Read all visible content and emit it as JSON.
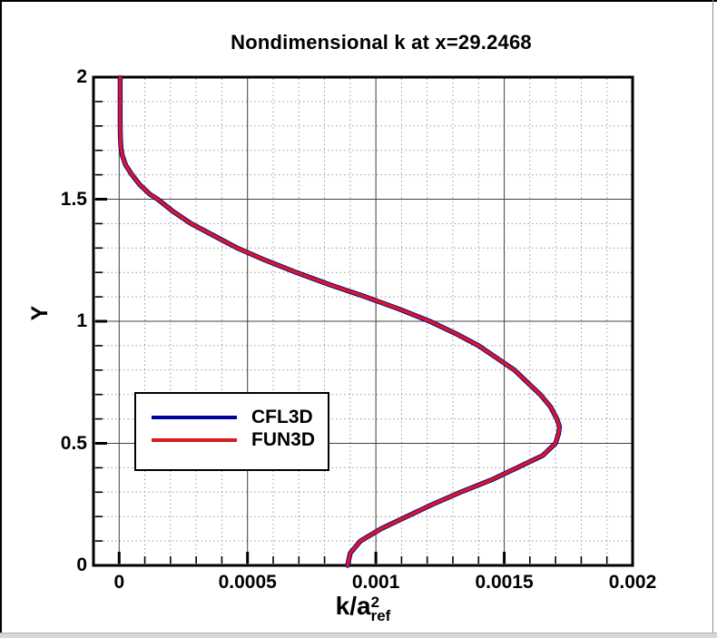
{
  "window": {
    "background": "#ffffff",
    "frame_color": "#000000",
    "bottom_bar_color": "#d7d7d7"
  },
  "chart_data": {
    "type": "line",
    "title": "Nondimensional k at x=29.2468",
    "xlabel": {
      "base": "k/a",
      "sup": "2",
      "sub": "ref"
    },
    "ylabel": "Y",
    "xlim": [
      -0.0001,
      0.002
    ],
    "ylim": [
      0,
      2
    ],
    "x_major_ticks": [
      0,
      0.0005,
      0.001,
      0.0015,
      0.002
    ],
    "x_tick_labels": [
      "0",
      "0.0005",
      "0.001",
      "0.0015",
      "0.002"
    ],
    "y_major_ticks": [
      0,
      0.5,
      1,
      1.5,
      2
    ],
    "y_tick_labels": [
      "0",
      "0.5",
      "1",
      "1.5",
      "2"
    ],
    "x_minor_step": 0.0001,
    "y_minor_step": 0.1,
    "grid": {
      "major_style": "solid",
      "minor_style": "dotted",
      "major_color": "#404040",
      "minor_color": "#999999"
    },
    "axis_color": "#000000",
    "legend": {
      "position": "inside-left-middle",
      "border_color": "#000000",
      "background": "#ffffff"
    },
    "series": [
      {
        "name": "CFL3D",
        "color": "#00009e",
        "points": [
          [
            4e-06,
            2.0
          ],
          [
            4e-06,
            1.9
          ],
          [
            4e-06,
            1.8
          ],
          [
            5e-06,
            1.75
          ],
          [
            7e-06,
            1.71
          ],
          [
            1.2e-05,
            1.68
          ],
          [
            2.5e-05,
            1.64
          ],
          [
            5e-05,
            1.6
          ],
          [
            8e-05,
            1.56
          ],
          [
            0.00012,
            1.52
          ],
          [
            0.00015,
            1.5
          ],
          [
            0.00021,
            1.45
          ],
          [
            0.00028,
            1.4
          ],
          [
            0.00037,
            1.35
          ],
          [
            0.00046,
            1.3
          ],
          [
            0.00057,
            1.25
          ],
          [
            0.00069,
            1.2
          ],
          [
            0.00082,
            1.15
          ],
          [
            0.00096,
            1.1
          ],
          [
            0.00109,
            1.05
          ],
          [
            0.00121,
            1.0
          ],
          [
            0.00131,
            0.95
          ],
          [
            0.0014,
            0.9
          ],
          [
            0.00147,
            0.85
          ],
          [
            0.00154,
            0.8
          ],
          [
            0.00159,
            0.75
          ],
          [
            0.00164,
            0.7
          ],
          [
            0.00168,
            0.65
          ],
          [
            0.001705,
            0.6
          ],
          [
            0.001715,
            0.57
          ],
          [
            0.001712,
            0.54
          ],
          [
            0.0017,
            0.5
          ],
          [
            0.00165,
            0.45
          ],
          [
            0.00155,
            0.4
          ],
          [
            0.00145,
            0.35
          ],
          [
            0.00133,
            0.3
          ],
          [
            0.00122,
            0.25
          ],
          [
            0.00112,
            0.2
          ],
          [
            0.00102,
            0.15
          ],
          [
            0.00094,
            0.1
          ],
          [
            0.0009,
            0.05
          ],
          [
            0.00089,
            0.0
          ]
        ]
      },
      {
        "name": "FUN3D",
        "color": "#d8191f",
        "points": [
          [
            4e-06,
            2.0
          ],
          [
            4e-06,
            1.9
          ],
          [
            4e-06,
            1.8
          ],
          [
            5e-06,
            1.75
          ],
          [
            7e-06,
            1.71
          ],
          [
            1.2e-05,
            1.68
          ],
          [
            2.5e-05,
            1.64
          ],
          [
            5e-05,
            1.6
          ],
          [
            8e-05,
            1.56
          ],
          [
            0.00012,
            1.52
          ],
          [
            0.00015,
            1.5
          ],
          [
            0.00021,
            1.45
          ],
          [
            0.00028,
            1.4
          ],
          [
            0.00037,
            1.35
          ],
          [
            0.00046,
            1.3
          ],
          [
            0.00057,
            1.25
          ],
          [
            0.00069,
            1.2
          ],
          [
            0.00082,
            1.15
          ],
          [
            0.00096,
            1.1
          ],
          [
            0.00109,
            1.05
          ],
          [
            0.00121,
            1.0
          ],
          [
            0.00131,
            0.95
          ],
          [
            0.0014,
            0.9
          ],
          [
            0.00147,
            0.85
          ],
          [
            0.00154,
            0.8
          ],
          [
            0.00159,
            0.75
          ],
          [
            0.00164,
            0.7
          ],
          [
            0.00168,
            0.65
          ],
          [
            0.001705,
            0.6
          ],
          [
            0.001715,
            0.57
          ],
          [
            0.001712,
            0.54
          ],
          [
            0.0017,
            0.5
          ],
          [
            0.00165,
            0.45
          ],
          [
            0.00155,
            0.4
          ],
          [
            0.00145,
            0.35
          ],
          [
            0.00133,
            0.3
          ],
          [
            0.00122,
            0.25
          ],
          [
            0.00112,
            0.2
          ],
          [
            0.00102,
            0.15
          ],
          [
            0.00094,
            0.1
          ],
          [
            0.0009,
            0.05
          ],
          [
            0.00089,
            0.0
          ]
        ]
      }
    ]
  }
}
